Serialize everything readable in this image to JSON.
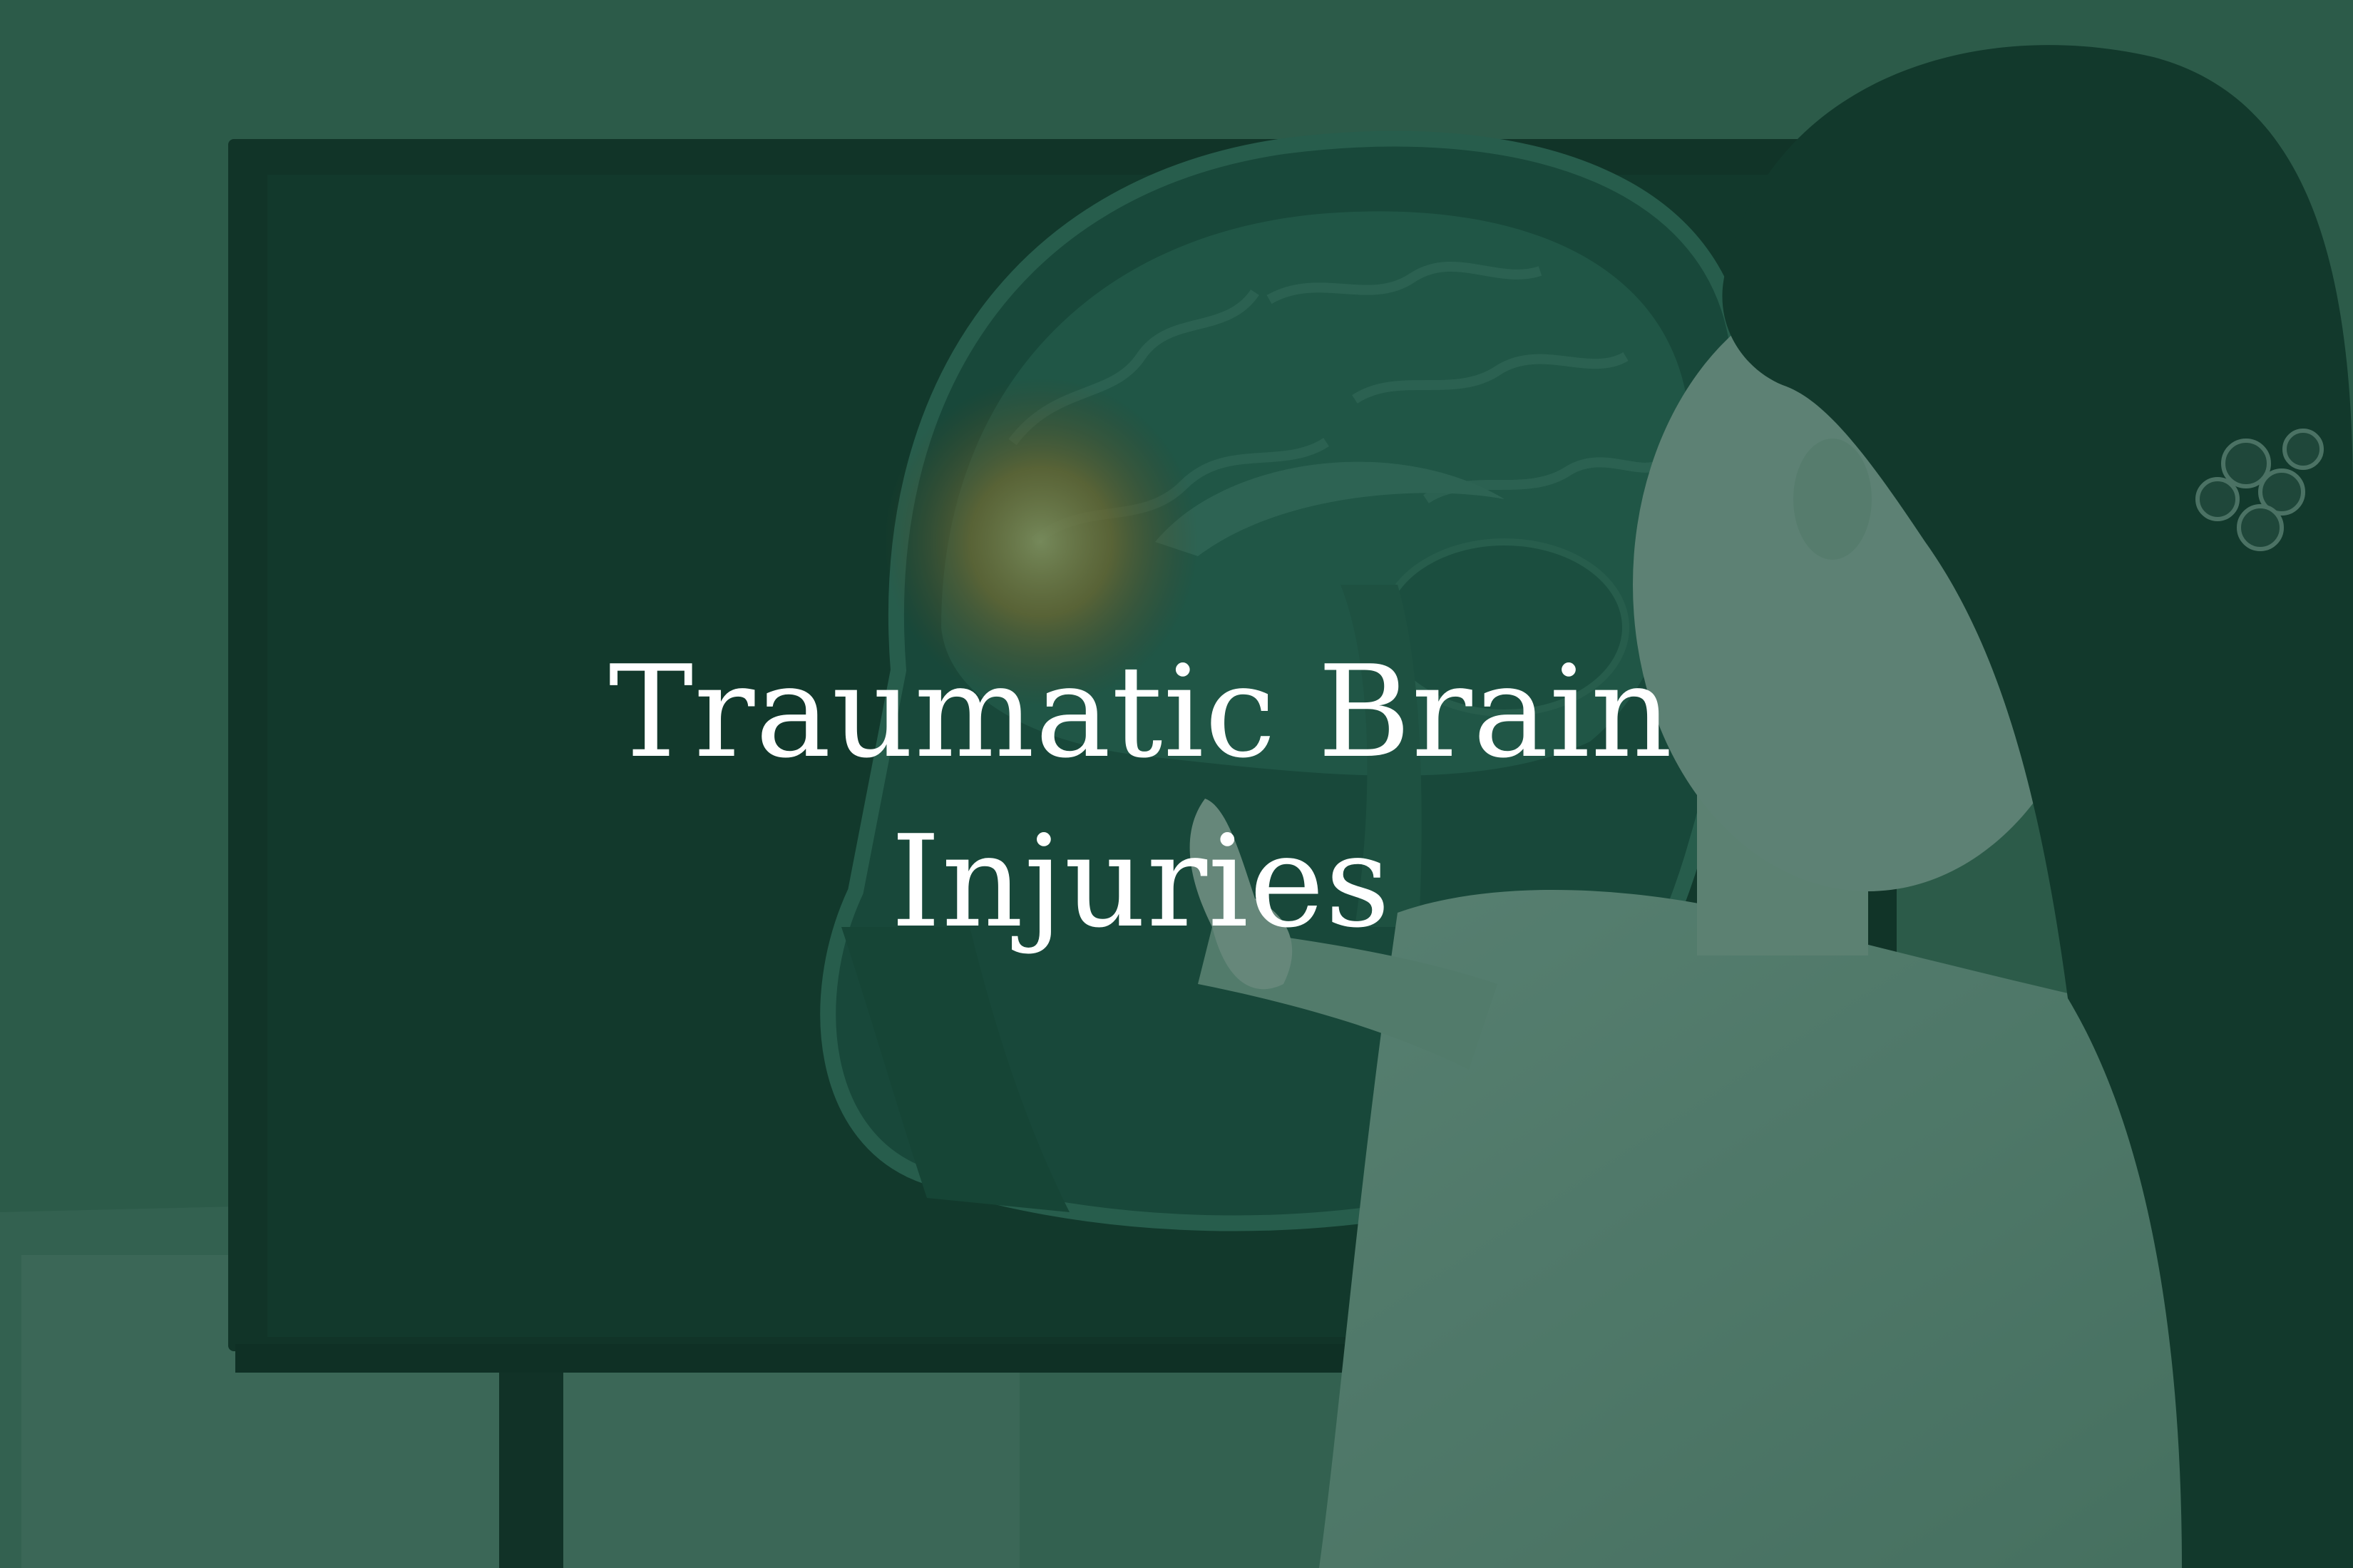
{
  "hero": {
    "title_line_1": "Traumatic Brain",
    "title_line_2": "Injuries",
    "overlay_color": "#144634"
  },
  "colors": {
    "background": "#3f6a58",
    "screen": "#143a2e",
    "brain_highlight": "#e0b24a",
    "coat": "#8fb0a2",
    "hair": "#0e2a21"
  }
}
